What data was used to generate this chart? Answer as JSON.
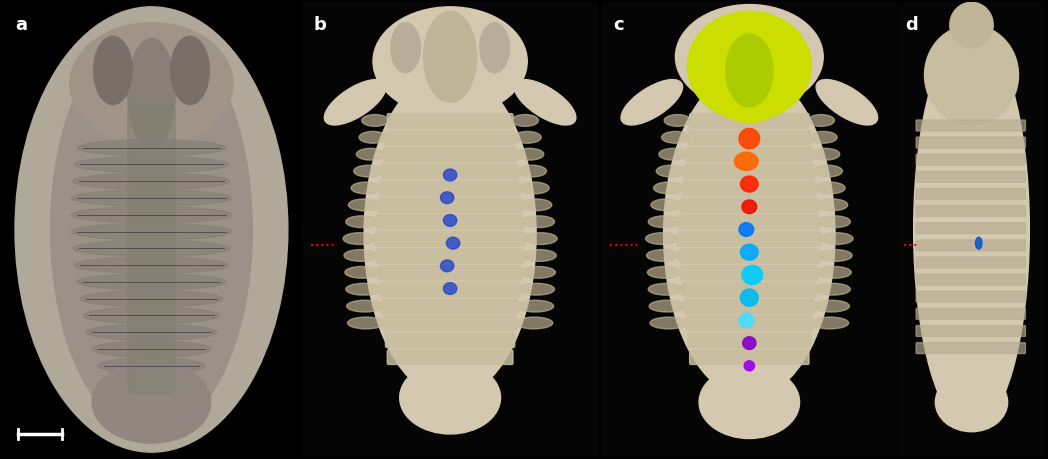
{
  "background_color": "#000000",
  "panel_labels": [
    "a",
    "b",
    "c",
    "d"
  ],
  "panel_label_color": "#ffffff",
  "panel_label_fontsize": 13,
  "panel_label_fontweight": "bold",
  "red_dot_color": "#ff0000",
  "scale_bar_color": "#ffffff",
  "fossil_c": "#d4c9b0",
  "fossil_a": "#909090",
  "stone_c": "#b8b0a8",
  "yellow_hl": "#ccdd00",
  "figsize": [
    10.48,
    4.59
  ],
  "dpi": 100
}
